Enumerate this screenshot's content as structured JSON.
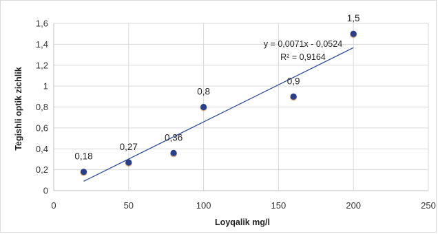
{
  "chart_data": {
    "type": "scatter",
    "xlabel": "Loyqalik mg/l",
    "ylabel": "Tegishli optik zichlik",
    "xlim": [
      0,
      250
    ],
    "ylim": [
      0,
      1.6
    ],
    "x_ticks": [
      "0",
      "50",
      "100",
      "150",
      "200",
      "250"
    ],
    "y_ticks": [
      "0",
      "0,2",
      "0,4",
      "0,6",
      "0,8",
      "1",
      "1,2",
      "1,4",
      "1,6"
    ],
    "grid": true,
    "series": [
      {
        "x": [
          20,
          50,
          80,
          100,
          160,
          200
        ],
        "y": [
          0.18,
          0.27,
          0.36,
          0.8,
          0.9,
          1.5
        ],
        "data_labels": [
          "0,18",
          "0,27",
          "0,36",
          "0,8",
          "0,9",
          "1,5"
        ]
      }
    ],
    "trendline": {
      "type": "linear",
      "slope": 0.0071,
      "intercept": -0.0524,
      "x_range": [
        20,
        200
      ],
      "equation": "y = 0,0071x - 0,0524",
      "r_squared": "R² = 0,9164"
    },
    "colors": {
      "point": "#2a3f8a",
      "trendline": "#2f4f9e",
      "grid": "#d9d9d9"
    }
  }
}
